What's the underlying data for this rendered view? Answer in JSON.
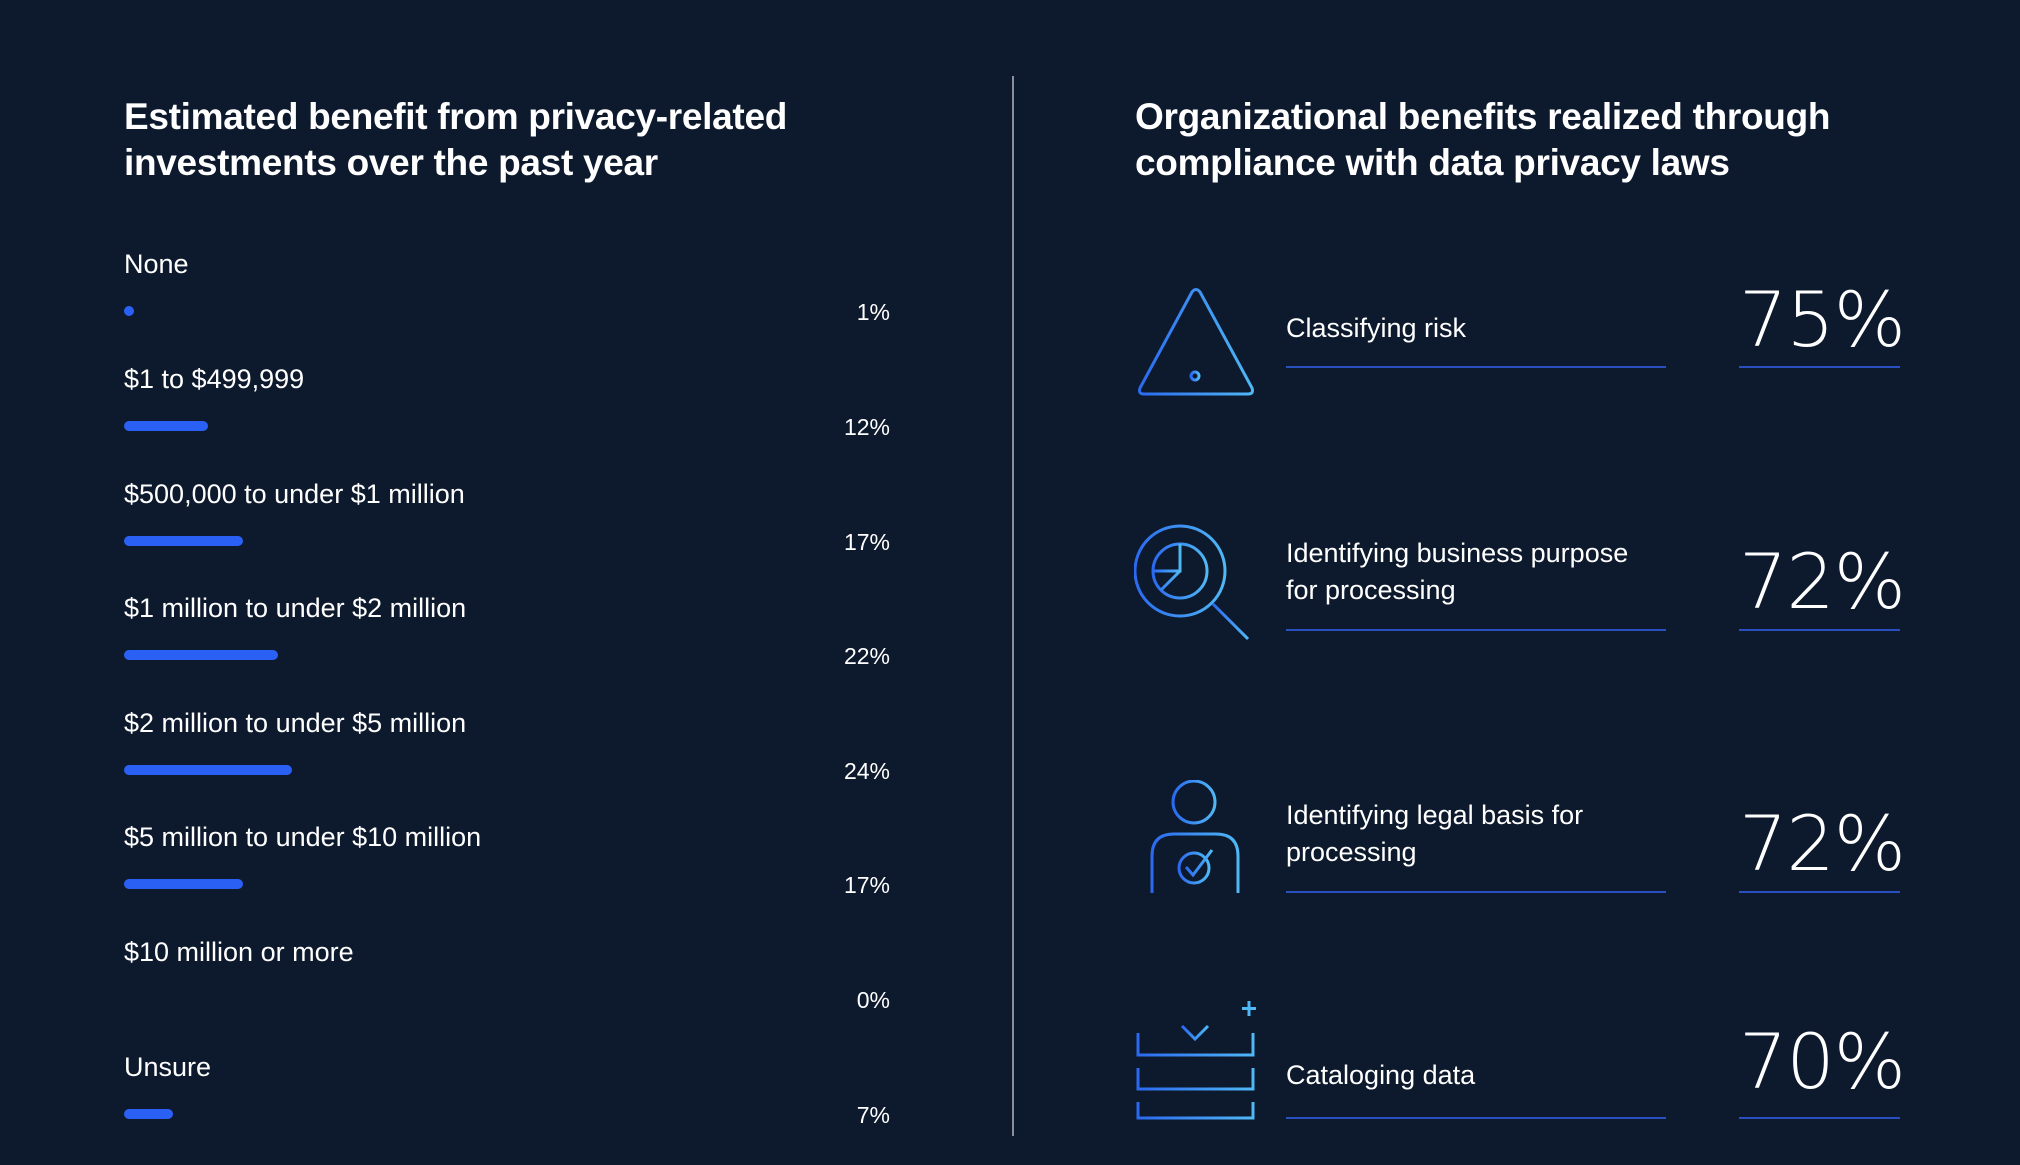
{
  "left_panel": {
    "title": "Estimated benefit from privacy-related investments over the past year"
  },
  "right_panel": {
    "title": "Organizational benefits realized through compliance with data privacy laws",
    "items": [
      {
        "label": "Classifying risk",
        "value": "75%",
        "icon": "warning-triangle-icon"
      },
      {
        "label": "Identifying business purpose for processing",
        "value": "72%",
        "icon": "magnifier-pie-chart-icon"
      },
      {
        "label": "Identifying legal basis for processing",
        "value": "72%",
        "icon": "person-checkmark-icon"
      },
      {
        "label": "Cataloging data",
        "value": "70%",
        "icon": "catalog-download-icon"
      }
    ]
  },
  "colors": {
    "background": "#0d192c",
    "bar": "#2b60f5",
    "underline": "#2a4fbf",
    "divider": "#8a8f99",
    "icon_gradient_start": "#2b6af0",
    "icon_gradient_end": "#4fb8f5"
  },
  "chart_data": [
    {
      "type": "bar",
      "orientation": "horizontal",
      "title": "Estimated benefit from privacy-related investments over the past year",
      "categories": [
        "None",
        "$1 to $499,999",
        "$500,000 to under $1 million",
        "$1 million to under $2 million",
        "$2 million to under $5 million",
        "$5 million to under $10 million",
        "$10 million or more",
        "Unsure"
      ],
      "values": [
        1,
        12,
        17,
        22,
        24,
        17,
        0,
        7
      ],
      "value_labels": [
        "1%",
        "12%",
        "17%",
        "22%",
        "24%",
        "17%",
        "0%",
        "7%"
      ],
      "unit": "%",
      "xlabel": "",
      "ylabel": "",
      "grid": false,
      "legend": null
    },
    {
      "type": "table",
      "title": "Organizational benefits realized through compliance with data privacy laws",
      "categories": [
        "Classifying risk",
        "Identifying business purpose for processing",
        "Identifying legal basis for processing",
        "Cataloging data"
      ],
      "values": [
        75,
        72,
        72,
        70
      ],
      "value_labels": [
        "75%",
        "72%",
        "72%",
        "70%"
      ],
      "unit": "%"
    }
  ]
}
